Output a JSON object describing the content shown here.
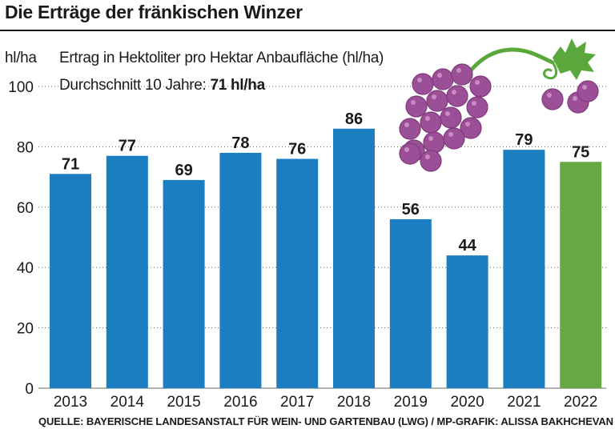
{
  "title": "Die Erträge der fränkischen Winzer",
  "unit": "hl/ha",
  "subtitle": "Ertrag in Hektoliter pro Hektar Anbaufläche (hl/ha)",
  "average": {
    "prefix": "Durchschnitt 10 Jahre:",
    "value": "71 hl/ha"
  },
  "source": "QUELLE: BAYERISCHE LANDESANSTALT FÜR WEIN- UND GARTENBAU (LWG) / MP-GRAFIK: ALISSA BAKHCHEVAN",
  "colors": {
    "bar": "#1a7ec0",
    "highlight": "#67a844",
    "grape": "#9b4f96",
    "leaf": "#5aa83c",
    "grid": "#666666"
  },
  "illustration": "grape-cluster-icon",
  "chart_data": {
    "type": "bar",
    "categories": [
      "2013",
      "2014",
      "2015",
      "2016",
      "2017",
      "2018",
      "2019",
      "2020",
      "2021",
      "2022"
    ],
    "values": [
      71,
      77,
      69,
      78,
      76,
      86,
      56,
      44,
      79,
      75
    ],
    "value_labels": [
      "71",
      "77",
      "69",
      "78",
      "76",
      "86",
      "56",
      "44",
      "79",
      "75"
    ],
    "highlight_category": "2022",
    "ylim": [
      0,
      100
    ],
    "yticks": [
      "0",
      "20",
      "40",
      "60",
      "80",
      "100"
    ],
    "ylabel": "hl/ha",
    "grid": true,
    "legend": "none"
  }
}
